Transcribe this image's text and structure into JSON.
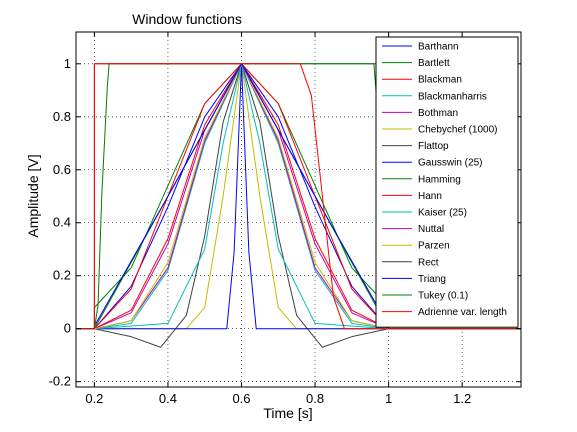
{
  "chart_data": {
    "type": "line",
    "title": "Window functions",
    "xlabel": "Time [s]",
    "ylabel": "Amplitude [V]",
    "xlim": [
      0.15,
      1.36
    ],
    "ylim": [
      -0.22,
      1.12
    ],
    "x_ticks": [
      0.2,
      0.4,
      0.6,
      0.8,
      1.0,
      1.2
    ],
    "x_tick_labels": [
      "0.2",
      "0.4",
      "0.6",
      "0.8",
      "1",
      "1.2"
    ],
    "y_ticks": [
      -0.2,
      0,
      0.2,
      0.4,
      0.6,
      0.8,
      1.0
    ],
    "y_tick_labels": [
      "-0.2",
      "0",
      "0.2",
      "0.4",
      "0.6",
      "0.8",
      "1"
    ],
    "grid": true,
    "legend_position": "top-right",
    "window_start": 0.2,
    "window_end": 1.0,
    "series": [
      {
        "name": "Barthann",
        "color": "#0000ff",
        "points": [
          [
            0.2,
            0
          ],
          [
            0.3,
            0.16
          ],
          [
            0.4,
            0.46
          ],
          [
            0.5,
            0.8
          ],
          [
            0.6,
            1.0
          ],
          [
            0.7,
            0.8
          ],
          [
            0.8,
            0.46
          ],
          [
            0.9,
            0.16
          ],
          [
            1.0,
            0
          ]
        ]
      },
      {
        "name": "Bartlett",
        "color": "#008000",
        "points": [
          [
            0.2,
            0
          ],
          [
            0.4,
            0.5
          ],
          [
            0.6,
            1.0
          ],
          [
            0.8,
            0.5
          ],
          [
            1.0,
            0
          ]
        ]
      },
      {
        "name": "Blackman",
        "color": "#ff0000",
        "points": [
          [
            0.2,
            0
          ],
          [
            0.3,
            0.07
          ],
          [
            0.4,
            0.34
          ],
          [
            0.5,
            0.77
          ],
          [
            0.6,
            1.0
          ],
          [
            0.7,
            0.77
          ],
          [
            0.8,
            0.34
          ],
          [
            0.9,
            0.07
          ],
          [
            1.0,
            0
          ]
        ]
      },
      {
        "name": "Blackmanharris",
        "color": "#00bfbf",
        "points": [
          [
            0.2,
            0
          ],
          [
            0.3,
            0.02
          ],
          [
            0.4,
            0.22
          ],
          [
            0.5,
            0.7
          ],
          [
            0.6,
            1.0
          ],
          [
            0.7,
            0.7
          ],
          [
            0.8,
            0.22
          ],
          [
            0.9,
            0.02
          ],
          [
            1.0,
            0
          ]
        ]
      },
      {
        "name": "Bothman",
        "color": "#bf00bf",
        "points": [
          [
            0.2,
            0
          ],
          [
            0.3,
            0.06
          ],
          [
            0.4,
            0.32
          ],
          [
            0.5,
            0.75
          ],
          [
            0.6,
            1.0
          ],
          [
            0.7,
            0.75
          ],
          [
            0.8,
            0.32
          ],
          [
            0.9,
            0.06
          ],
          [
            1.0,
            0
          ]
        ]
      },
      {
        "name": "Chebychef (1000)",
        "color": "#bfbf00",
        "points": [
          [
            0.2,
            0
          ],
          [
            0.45,
            0.0
          ],
          [
            0.5,
            0.08
          ],
          [
            0.55,
            0.5
          ],
          [
            0.6,
            1.0
          ],
          [
            0.65,
            0.5
          ],
          [
            0.7,
            0.08
          ],
          [
            0.75,
            0.0
          ],
          [
            1.0,
            0
          ]
        ]
      },
      {
        "name": "Flattop",
        "color": "#404040",
        "points": [
          [
            0.2,
            0
          ],
          [
            0.3,
            -0.03
          ],
          [
            0.38,
            -0.07
          ],
          [
            0.45,
            0.05
          ],
          [
            0.5,
            0.35
          ],
          [
            0.55,
            0.78
          ],
          [
            0.6,
            1.0
          ],
          [
            0.65,
            0.78
          ],
          [
            0.7,
            0.35
          ],
          [
            0.75,
            0.05
          ],
          [
            0.82,
            -0.07
          ],
          [
            0.9,
            -0.03
          ],
          [
            1.0,
            0
          ]
        ]
      },
      {
        "name": "Gausswin (25)",
        "color": "#0000ff",
        "points": [
          [
            0.2,
            0
          ],
          [
            0.56,
            0.0
          ],
          [
            0.58,
            0.29
          ],
          [
            0.6,
            1.0
          ],
          [
            0.62,
            0.29
          ],
          [
            0.64,
            0.0
          ],
          [
            1.0,
            0
          ]
        ]
      },
      {
        "name": "Hamming",
        "color": "#008000",
        "points": [
          [
            0.2,
            0.08
          ],
          [
            0.3,
            0.23
          ],
          [
            0.4,
            0.54
          ],
          [
            0.5,
            0.85
          ],
          [
            0.6,
            1.0
          ],
          [
            0.7,
            0.85
          ],
          [
            0.8,
            0.54
          ],
          [
            0.9,
            0.23
          ],
          [
            1.0,
            0.08
          ]
        ]
      },
      {
        "name": "Hann",
        "color": "#ff0000",
        "points": [
          [
            0.2,
            0
          ],
          [
            0.3,
            0.15
          ],
          [
            0.4,
            0.5
          ],
          [
            0.5,
            0.85
          ],
          [
            0.6,
            1.0
          ],
          [
            0.7,
            0.85
          ],
          [
            0.8,
            0.5
          ],
          [
            0.9,
            0.15
          ],
          [
            1.0,
            0
          ]
        ]
      },
      {
        "name": "Kaiser (25)",
        "color": "#00bfbf",
        "points": [
          [
            0.2,
            0
          ],
          [
            0.4,
            0.02
          ],
          [
            0.5,
            0.3
          ],
          [
            0.55,
            0.7
          ],
          [
            0.6,
            1.0
          ],
          [
            0.65,
            0.7
          ],
          [
            0.7,
            0.3
          ],
          [
            0.8,
            0.02
          ],
          [
            1.0,
            0
          ]
        ]
      },
      {
        "name": "Nuttal",
        "color": "#bf00bf",
        "points": [
          [
            0.2,
            0
          ],
          [
            0.3,
            0.03
          ],
          [
            0.4,
            0.23
          ],
          [
            0.5,
            0.71
          ],
          [
            0.6,
            1.0
          ],
          [
            0.7,
            0.71
          ],
          [
            0.8,
            0.23
          ],
          [
            0.9,
            0.03
          ],
          [
            1.0,
            0
          ]
        ]
      },
      {
        "name": "Parzen",
        "color": "#bfbf00",
        "points": [
          [
            0.2,
            0
          ],
          [
            0.3,
            0.03
          ],
          [
            0.4,
            0.25
          ],
          [
            0.5,
            0.72
          ],
          [
            0.6,
            1.0
          ],
          [
            0.7,
            0.72
          ],
          [
            0.8,
            0.25
          ],
          [
            0.9,
            0.03
          ],
          [
            1.0,
            0
          ]
        ]
      },
      {
        "name": "Rect",
        "color": "#404040",
        "points": [
          [
            0.2,
            1.0
          ],
          [
            1.0,
            1.0
          ]
        ]
      },
      {
        "name": "Triang",
        "color": "#0000ff",
        "points": [
          [
            0.2,
            0.01
          ],
          [
            0.4,
            0.5
          ],
          [
            0.6,
            1.0
          ],
          [
            0.8,
            0.5
          ],
          [
            1.0,
            0.01
          ]
        ]
      },
      {
        "name": "Tukey (0.1)",
        "color": "#008000",
        "points": [
          [
            0.2,
            0
          ],
          [
            0.21,
            0.09
          ],
          [
            0.22,
            0.5
          ],
          [
            0.235,
            0.91
          ],
          [
            0.24,
            1.0
          ],
          [
            0.96,
            1.0
          ],
          [
            0.965,
            0.91
          ],
          [
            0.98,
            0.5
          ],
          [
            0.99,
            0.09
          ],
          [
            1.0,
            0
          ]
        ]
      },
      {
        "name": "Adrienne var. length",
        "color": "#ff0000",
        "points": [
          [
            0.2,
            0
          ],
          [
            0.2,
            1.0
          ],
          [
            0.76,
            1.0
          ],
          [
            0.79,
            0.88
          ],
          [
            0.82,
            0.5
          ],
          [
            0.85,
            0.12
          ],
          [
            0.88,
            0.0
          ],
          [
            1.36,
            0.0
          ]
        ]
      }
    ]
  }
}
